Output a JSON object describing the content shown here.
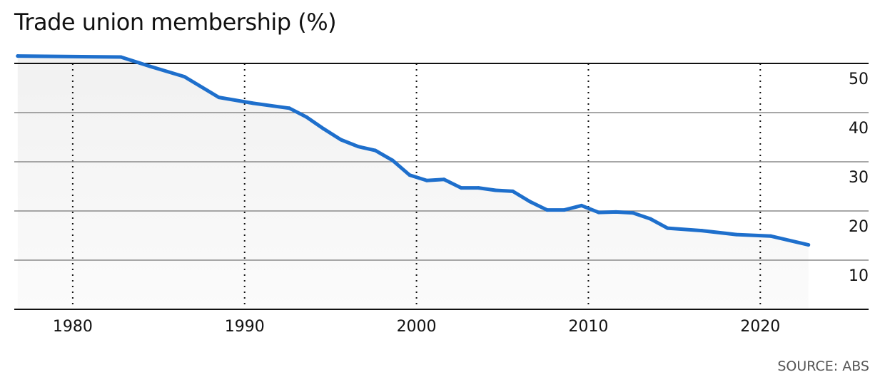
{
  "title": "Trade union membership (%)",
  "source": "SOURCE: ABS",
  "colors": {
    "line": "#1e6fcc",
    "axis": "#111111",
    "grid": "#8a8a8a",
    "area_top": "#f1f1f1",
    "area_bottom": "#fbfbfb"
  },
  "chart_data": {
    "type": "line",
    "title": "Trade union membership (%)",
    "xlabel": "",
    "ylabel": "",
    "xlim": [
      1976.6,
      2026.3
    ],
    "ylim": [
      0,
      50
    ],
    "x_ticks": [
      1980,
      1990,
      2000,
      2010,
      2020
    ],
    "y_ticks": [
      10,
      20,
      30,
      40,
      50
    ],
    "grid": {
      "horizontal": "solid",
      "vertical": "dotted"
    },
    "y_axis_position": "right",
    "series": [
      {
        "x": [
          1976.8,
          1982.8,
          1984.5,
          1986.5,
          1988.5,
          1990.5,
          1992.6,
          1993.6,
          1994.6,
          1995.6,
          1996.6,
          1997.6,
          1998.6,
          1999.6,
          2000.6,
          2001.6,
          2002.6,
          2003.6,
          2004.6,
          2005.6,
          2006.6,
          2007.6,
          2008.6,
          2009.6,
          2010.6,
          2011.6,
          2012.6,
          2013.6,
          2014.6,
          2016.6,
          2018.6,
          2020.6,
          2022.8
        ],
        "values": [
          51.5,
          51.3,
          49.4,
          47.3,
          43.1,
          41.9,
          40.9,
          39.1,
          36.7,
          34.5,
          33.1,
          32.3,
          30.3,
          27.3,
          26.2,
          26.4,
          24.7,
          24.7,
          24.2,
          24.0,
          21.9,
          20.2,
          20.2,
          21.1,
          19.7,
          19.8,
          19.6,
          18.4,
          16.5,
          16.0,
          15.2,
          14.9,
          13.1
        ]
      }
    ]
  }
}
